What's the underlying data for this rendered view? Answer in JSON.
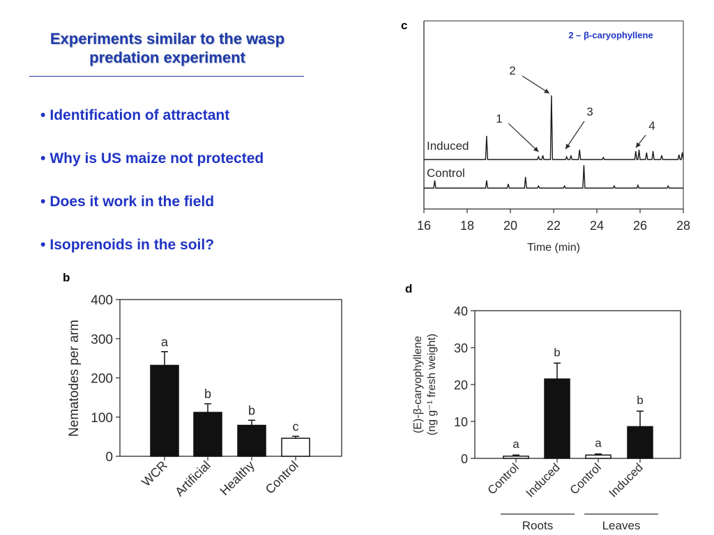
{
  "slide": {
    "title_line1": "Experiments similar to the wasp",
    "title_line2": "predation experiment",
    "bullets": [
      "Identification of attractant",
      "Why is US maize not protected",
      "Does it work in the field",
      "Isoprenoids in the soil?"
    ],
    "accent_color": "#1f33c4"
  },
  "chart_data": [
    {
      "panel": "b",
      "type": "bar",
      "ylabel": "Nematodes per arm",
      "ylim": [
        0,
        400
      ],
      "yticks": [
        0,
        100,
        200,
        300,
        400
      ],
      "categories": [
        "WCR",
        "Artificial",
        "Healthy",
        "Control"
      ],
      "values": [
        232,
        112,
        79,
        46
      ],
      "errors": [
        35,
        22,
        13,
        5
      ],
      "fills": [
        "black",
        "black",
        "black",
        "white"
      ],
      "sig_letters": [
        "a",
        "b",
        "b",
        "c"
      ]
    },
    {
      "panel": "c",
      "type": "line",
      "annotation": "2 – β-caryophyllene",
      "xlabel": "Time (min)",
      "xlim": [
        16,
        28
      ],
      "xticks": [
        16,
        18,
        20,
        22,
        24,
        26,
        28
      ],
      "series": [
        {
          "name": "Induced",
          "peaks": [
            [
              18.9,
              34
            ],
            [
              21.3,
              4
            ],
            [
              21.5,
              6
            ],
            [
              21.9,
              92
            ],
            [
              22.6,
              4
            ],
            [
              22.8,
              6
            ],
            [
              23.2,
              14
            ],
            [
              24.3,
              3
            ],
            [
              25.8,
              12
            ],
            [
              25.95,
              14
            ],
            [
              26.3,
              10
            ],
            [
              26.6,
              12
            ],
            [
              27.0,
              6
            ],
            [
              27.8,
              7
            ],
            [
              27.95,
              10
            ]
          ]
        },
        {
          "name": "Control",
          "peaks": [
            [
              16.5,
              11
            ],
            [
              18.9,
              11
            ],
            [
              19.9,
              6
            ],
            [
              20.7,
              16
            ],
            [
              21.3,
              3
            ],
            [
              22.5,
              3
            ],
            [
              23.4,
              33
            ],
            [
              24.8,
              3
            ],
            [
              25.9,
              4
            ],
            [
              27.3,
              3
            ]
          ]
        }
      ],
      "peak_labels": [
        {
          "label": "1",
          "x": 21.4
        },
        {
          "label": "2",
          "x": 21.9
        },
        {
          "label": "3",
          "x": 22.65
        },
        {
          "label": "4",
          "x": 25.9
        }
      ]
    },
    {
      "panel": "d",
      "type": "bar",
      "ylabel_line1": "(E)-β-caryophyllene",
      "ylabel_line2": "(ng g⁻¹ fresh weight)",
      "ylim": [
        0,
        40
      ],
      "yticks": [
        0,
        10,
        20,
        30,
        40
      ],
      "categories": [
        "Control",
        "Induced",
        "Control",
        "Induced"
      ],
      "groups": [
        {
          "name": "Roots",
          "members": [
            0,
            1
          ]
        },
        {
          "name": "Leaves",
          "members": [
            2,
            3
          ]
        }
      ],
      "values": [
        0.6,
        21.5,
        0.9,
        8.6
      ],
      "errors": [
        0.3,
        4.3,
        0.3,
        4.2
      ],
      "fills": [
        "white",
        "black",
        "white",
        "black"
      ],
      "sig_letters": [
        "a",
        "b",
        "a",
        "b"
      ]
    }
  ]
}
